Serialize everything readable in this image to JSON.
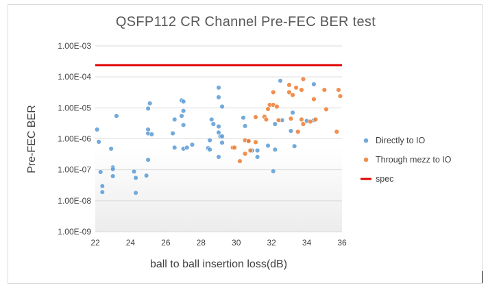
{
  "chart_data": {
    "type": "scatter",
    "title": "QSFP112 CR Channel Pre-FEC BER test",
    "xlabel": "ball to ball insertion loss(dB)",
    "ylabel": "Pre-FEC BER",
    "xlim": [
      22,
      36
    ],
    "ylim": [
      1e-09,
      0.001
    ],
    "y_scale": "log",
    "grid": true,
    "legend_position": "right",
    "x_tick_labels": [
      "22",
      "24",
      "26",
      "28",
      "30",
      "32",
      "34",
      "36"
    ],
    "y_tick_labels": [
      "1.00E-09",
      "1.00E-08",
      "1.00E-07",
      "1.00E-06",
      "1.00E-05",
      "1.00E-04",
      "1.00E-03"
    ],
    "series": [
      {
        "name": "Directly to IO",
        "color": "#5b9bd5",
        "points": [
          [
            22.1,
            2e-06
          ],
          [
            22.2,
            8e-07
          ],
          [
            22.3,
            8.5e-08
          ],
          [
            22.4,
            3e-08
          ],
          [
            22.4,
            1.9e-08
          ],
          [
            22.9,
            4.8e-07
          ],
          [
            23.0,
            1.2e-07
          ],
          [
            23.0,
            1.05e-07
          ],
          [
            23.0,
            6.2e-08
          ],
          [
            23.2,
            5.5e-06
          ],
          [
            24.2,
            8.8e-08
          ],
          [
            24.3,
            5.5e-08
          ],
          [
            24.3,
            1.8e-08
          ],
          [
            24.9,
            6.5e-08
          ],
          [
            25.0,
            2.1e-07
          ],
          [
            25.0,
            2e-06
          ],
          [
            25.0,
            1.5e-06
          ],
          [
            25.0,
            9.5e-06
          ],
          [
            25.1,
            1.4e-05
          ],
          [
            25.2,
            1.4e-06
          ],
          [
            26.4,
            1.5e-06
          ],
          [
            26.5,
            4.2e-06
          ],
          [
            26.5,
            5.2e-07
          ],
          [
            26.9,
            1.75e-05
          ],
          [
            26.9,
            5.5e-06
          ],
          [
            27.0,
            1.6e-05
          ],
          [
            27.0,
            8e-06
          ],
          [
            27.0,
            2.8e-06
          ],
          [
            27.0,
            4.8e-07
          ],
          [
            27.2,
            5.2e-07
          ],
          [
            27.5,
            6.5e-07
          ],
          [
            28.4,
            5e-07
          ],
          [
            28.5,
            9e-07
          ],
          [
            28.5,
            4.5e-07
          ],
          [
            28.6,
            4.2e-06
          ],
          [
            28.7,
            3e-06
          ],
          [
            29.0,
            4.5e-05
          ],
          [
            29.0,
            2.2e-05
          ],
          [
            29.0,
            2.5e-06
          ],
          [
            29.0,
            1.6e-06
          ],
          [
            29.0,
            2.6e-07
          ],
          [
            29.1,
            1.2e-06
          ],
          [
            29.2,
            1.1e-05
          ],
          [
            29.2,
            7.5e-07
          ],
          [
            29.2,
            1.2e-06
          ],
          [
            30.4,
            4.8e-06
          ],
          [
            30.5,
            2.6e-06
          ],
          [
            30.7,
            8.5e-07
          ],
          [
            30.9,
            4.2e-07
          ],
          [
            31.2,
            4.2e-07
          ],
          [
            31.2,
            2.6e-07
          ],
          [
            31.8,
            6e-07
          ],
          [
            32.1,
            9e-08
          ],
          [
            32.2,
            4.5e-07
          ],
          [
            32.2,
            3e-06
          ],
          [
            32.5,
            7.5e-05
          ],
          [
            32.6,
            4e-06
          ],
          [
            33.1,
            1.8e-06
          ],
          [
            33.2,
            7e-06
          ],
          [
            33.3,
            5.8e-07
          ],
          [
            34.0,
            3.8e-06
          ],
          [
            34.4,
            5.8e-05
          ],
          [
            34.4,
            4e-06
          ]
        ]
      },
      {
        "name": "Through mezz to IO",
        "color": "#ed7d31",
        "points": [
          [
            29.8,
            5.2e-07
          ],
          [
            29.9,
            5.2e-07
          ],
          [
            30.2,
            1.9e-07
          ],
          [
            30.5,
            3.3e-07
          ],
          [
            30.5,
            9e-07
          ],
          [
            30.7,
            8.5e-07
          ],
          [
            30.8,
            4.2e-07
          ],
          [
            31.1,
            5e-06
          ],
          [
            31.1,
            7.8e-07
          ],
          [
            31.6,
            5.2e-06
          ],
          [
            31.7,
            4.2e-06
          ],
          [
            31.8,
            9.2e-06
          ],
          [
            31.9,
            1.25e-05
          ],
          [
            32.1,
            1.25e-05
          ],
          [
            32.1,
            3.2e-05
          ],
          [
            32.3,
            1.1e-05
          ],
          [
            32.4,
            4e-06
          ],
          [
            33.0,
            5.5e-05
          ],
          [
            33.0,
            3.2e-05
          ],
          [
            33.1,
            4.5e-06
          ],
          [
            33.2,
            2.6e-05
          ],
          [
            33.4,
            4.5e-05
          ],
          [
            33.5,
            1.7e-06
          ],
          [
            33.7,
            3.8e-05
          ],
          [
            33.7,
            4.2e-06
          ],
          [
            33.8,
            8.5e-05
          ],
          [
            33.8,
            3e-06
          ],
          [
            34.2,
            3.6e-06
          ],
          [
            34.4,
            1.9e-05
          ],
          [
            34.5,
            4.2e-06
          ],
          [
            35.0,
            3.8e-05
          ],
          [
            35.1,
            9e-06
          ],
          [
            35.7,
            1.7e-06
          ],
          [
            35.8,
            3.8e-05
          ],
          [
            35.9,
            2.4e-05
          ]
        ]
      },
      {
        "name": "spec",
        "color": "#e00000",
        "line_y": 0.00024
      }
    ]
  }
}
